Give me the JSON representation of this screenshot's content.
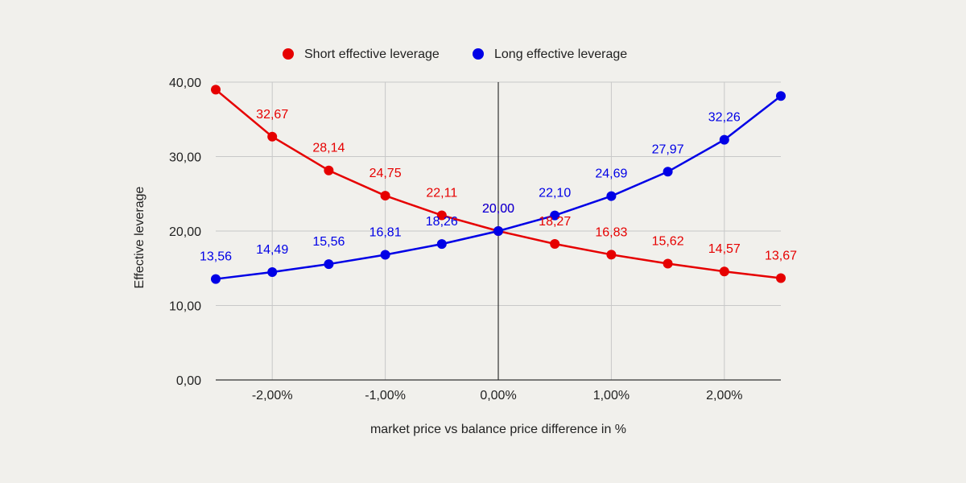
{
  "chart_data": {
    "type": "line",
    "title": "",
    "xlabel": "market price vs balance price difference in %",
    "ylabel": "Effective leverage",
    "x": [
      -2.5,
      -2.0,
      -1.5,
      -1.0,
      -0.5,
      0.0,
      0.5,
      1.0,
      1.5,
      2.0,
      2.5
    ],
    "xlim": [
      -2.5,
      2.5
    ],
    "ylim": [
      0,
      40
    ],
    "x_ticks": [
      -2.0,
      -1.0,
      0.0,
      1.0,
      2.0
    ],
    "x_tick_labels": [
      "-2,00%",
      "-1,00%",
      "0,00%",
      "1,00%",
      "2,00%"
    ],
    "y_ticks": [
      0,
      10,
      20,
      30,
      40
    ],
    "y_tick_labels": [
      "0,00",
      "10,00",
      "20,00",
      "30,00",
      "40,00"
    ],
    "grid": true,
    "legend_position": "top-center",
    "series": [
      {
        "name": "Short effective leverage",
        "color": "#e60000",
        "values": [
          38.99,
          32.67,
          28.14,
          24.75,
          22.11,
          20.0,
          18.27,
          16.83,
          15.62,
          14.57,
          13.67
        ],
        "labels": [
          "",
          "32,67",
          "28,14",
          "24,75",
          "22,11",
          "20,00",
          "18,27",
          "16,83",
          "15,62",
          "14,57",
          "13,67"
        ]
      },
      {
        "name": "Long effective leverage",
        "color": "#0000e6",
        "values": [
          13.56,
          14.49,
          15.56,
          16.81,
          18.26,
          20.0,
          22.1,
          24.69,
          27.97,
          32.26,
          38.13
        ],
        "labels": [
          "13,56",
          "14,49",
          "15,56",
          "16,81",
          "18,26",
          "20,00",
          "22,10",
          "24,69",
          "27,97",
          "32,26",
          ""
        ]
      }
    ]
  }
}
